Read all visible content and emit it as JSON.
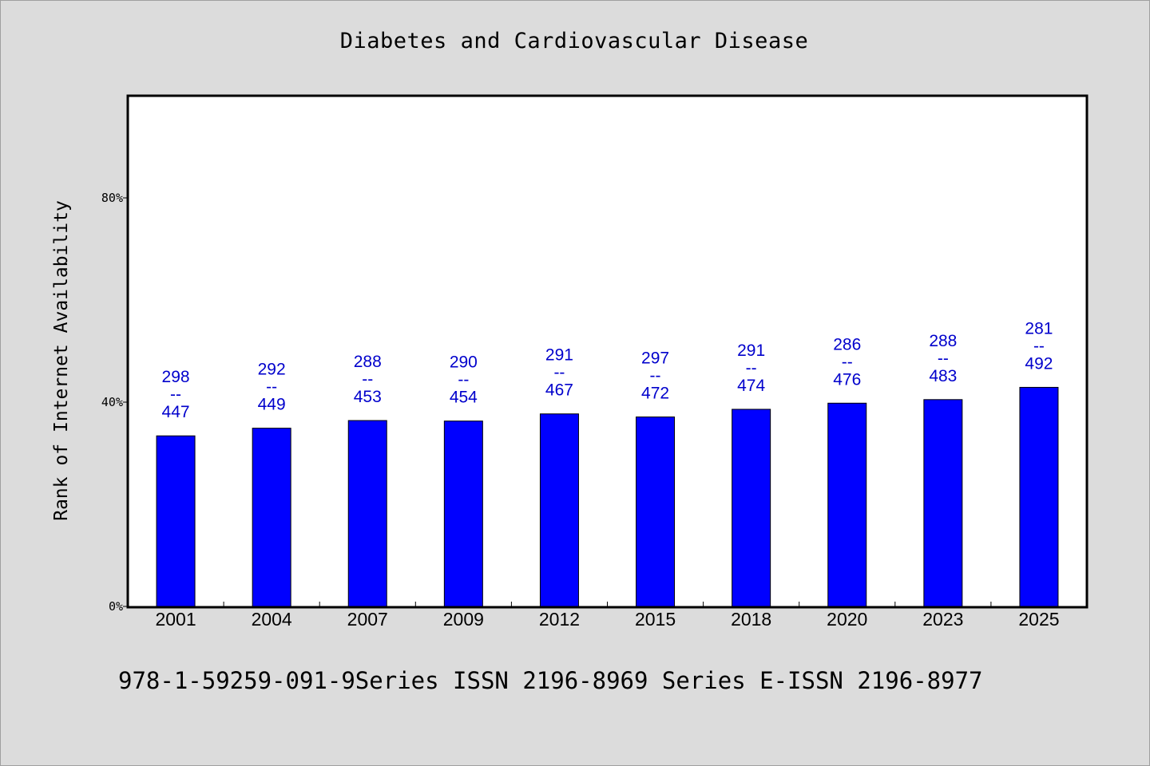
{
  "chart_data": {
    "type": "bar",
    "title": "Diabetes and Cardiovascular Disease",
    "ylabel": "Rank of Internet Availability",
    "xlabel": "",
    "ylim": [
      0,
      100
    ],
    "yticks": [
      0,
      40,
      80
    ],
    "ytick_labels": [
      "0%",
      "40%",
      "80%"
    ],
    "grid": false,
    "categories": [
      "2001",
      "2004",
      "2007",
      "2009",
      "2012",
      "2015",
      "2018",
      "2020",
      "2023",
      "2025"
    ],
    "values": [
      33.4,
      34.9,
      36.4,
      36.3,
      37.7,
      37.1,
      38.6,
      39.8,
      40.5,
      42.9
    ],
    "labels_top": [
      "298",
      "292",
      "288",
      "290",
      "291",
      "297",
      "291",
      "286",
      "288",
      "281"
    ],
    "labels_sep": "--",
    "labels_bottom": [
      "447",
      "449",
      "453",
      "454",
      "467",
      "472",
      "474",
      "476",
      "483",
      "492"
    ],
    "bar_color": "#0000ff",
    "label_color": "#0000cc"
  },
  "footer": {
    "note": "978-1-59259-091-9Series ISSN 2196-8969 Series E-ISSN 2196-8977"
  }
}
